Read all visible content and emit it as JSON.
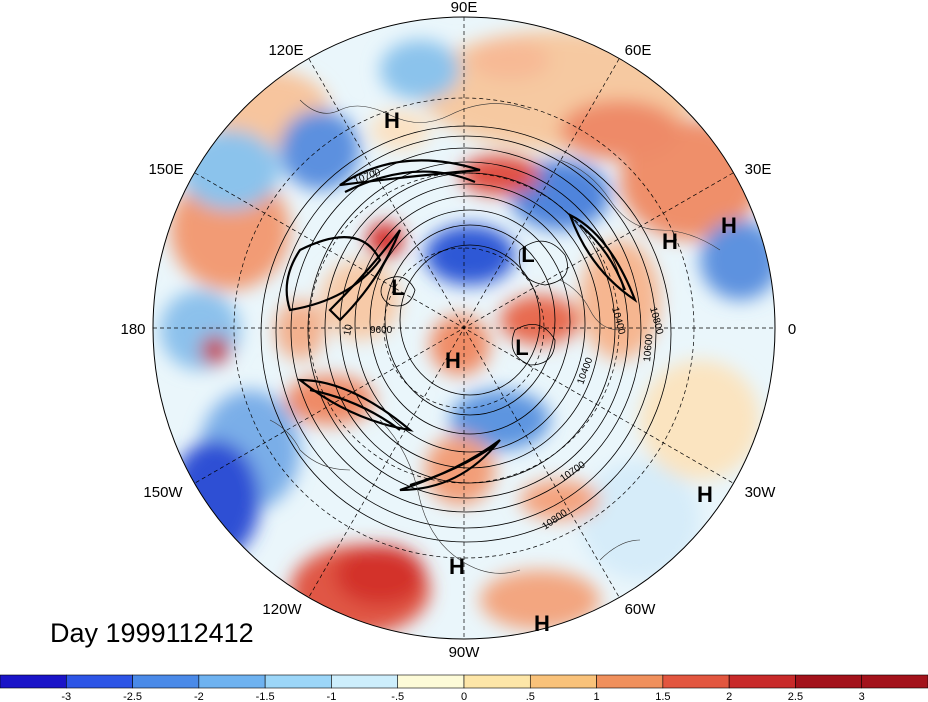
{
  "title": "Day 1999112412",
  "longitude_labels": [
    "90E",
    "60E",
    "30E",
    "0",
    "30W",
    "60W",
    "90W",
    "120W",
    "150W",
    "180",
    "150E",
    "120E"
  ],
  "pressure_centers": [
    "H",
    "H",
    "H",
    "H",
    "H",
    "H",
    "H",
    "L",
    "L",
    "L"
  ],
  "contour_labels": [
    "10700",
    "9600",
    "10400",
    "10600",
    "10800",
    "10400",
    "10700",
    "10800",
    "10"
  ],
  "colorbar": {
    "tick_labels": [
      "-3",
      "-2.5",
      "-2",
      "-1.5",
      "-1",
      "-.5",
      "0",
      ".5",
      "1",
      "1.5",
      "2",
      "2.5",
      "3"
    ],
    "colors": [
      "#1a14c8",
      "#2d55e6",
      "#4a8ae8",
      "#6eb2f0",
      "#9cd6f8",
      "#cdeefc",
      "#fdfbd8",
      "#fde6a8",
      "#f9c27a",
      "#f0905c",
      "#e2563f",
      "#c82a2a",
      "#a3121b"
    ]
  },
  "colors": {
    "background": "#ffffff",
    "contour": "#000000",
    "grid": "#000000"
  }
}
